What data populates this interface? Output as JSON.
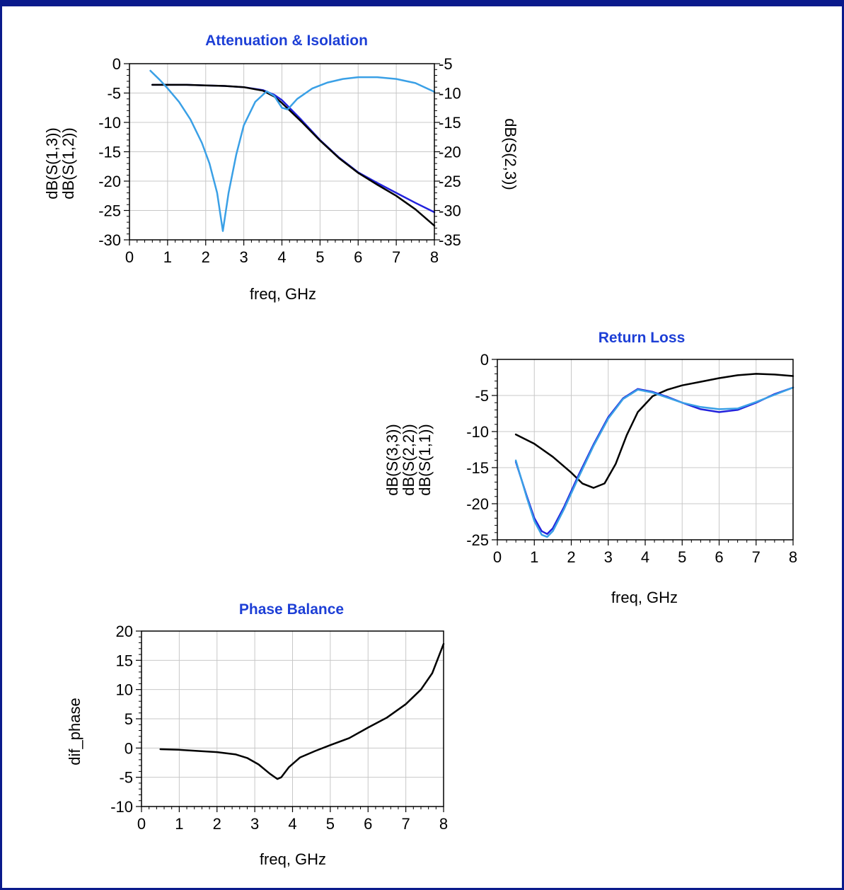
{
  "chart_data": [
    {
      "type": "line",
      "title": "Attenuation & Isolation",
      "xlabel": "freq, GHz",
      "xlim": [
        0,
        8
      ],
      "xticks": [
        0,
        1,
        2,
        3,
        4,
        5,
        6,
        7,
        8
      ],
      "ylim": [
        -30,
        0
      ],
      "yticks": [
        0,
        -5,
        -10,
        -15,
        -20,
        -25,
        -30
      ],
      "y2lim": [
        -35,
        -5
      ],
      "y2ticks": [
        -5,
        -10,
        -15,
        -20,
        -25,
        -30,
        -35
      ],
      "grid": true,
      "ylabels_left": [
        "dB(S(1,3))",
        "dB(S(1,2))"
      ],
      "ylabels_right": [
        "dB(S(2,3))"
      ],
      "series": [
        {
          "name": "dB(S(1,3))",
          "axis": "left",
          "color": "#2222dd",
          "x": [
            0.6,
            1,
            1.5,
            2,
            2.5,
            3,
            3.5,
            3.8,
            4,
            4.5,
            5,
            5.5,
            6,
            6.5,
            7,
            7.5,
            8
          ],
          "y": [
            -3.6,
            -3.6,
            -3.6,
            -3.7,
            -3.8,
            -4.0,
            -4.5,
            -5.3,
            -6.2,
            -9.5,
            -13,
            -16,
            -18.5,
            -20.3,
            -22,
            -23.7,
            -25.3
          ]
        },
        {
          "name": "dB(S(1,2))",
          "axis": "left",
          "color": "#000000",
          "x": [
            0.6,
            1,
            1.5,
            2,
            2.5,
            3,
            3.5,
            3.8,
            4,
            4.5,
            5,
            5.5,
            6,
            6.5,
            7,
            7.5,
            8
          ],
          "y": [
            -3.6,
            -3.6,
            -3.6,
            -3.7,
            -3.8,
            -4.0,
            -4.6,
            -5.6,
            -6.7,
            -9.8,
            -13.1,
            -16.1,
            -18.6,
            -20.6,
            -22.5,
            -24.8,
            -27.6
          ]
        },
        {
          "name": "dB(S(2,3))",
          "axis": "right",
          "color": "#3aa0e6",
          "x": [
            0.55,
            0.8,
            1,
            1.3,
            1.6,
            1.9,
            2.1,
            2.3,
            2.45,
            2.6,
            2.8,
            3.0,
            3.3,
            3.6,
            3.8,
            4.0,
            4.15,
            4.4,
            4.8,
            5.2,
            5.6,
            6.0,
            6.5,
            7.0,
            7.5,
            8.0
          ],
          "y": [
            -6.2,
            -7.8,
            -9.2,
            -11.5,
            -14.5,
            -18.5,
            -22,
            -27,
            -33.5,
            -27,
            -20.5,
            -15.5,
            -11.5,
            -9.7,
            -10.5,
            -12.5,
            -12.8,
            -11,
            -9.2,
            -8.2,
            -7.6,
            -7.3,
            -7.3,
            -7.6,
            -8.3,
            -9.8
          ]
        }
      ]
    },
    {
      "type": "line",
      "title": "Return Loss",
      "xlabel": "freq, GHz",
      "xlim": [
        0,
        8
      ],
      "xticks": [
        0,
        1,
        2,
        3,
        4,
        5,
        6,
        7,
        8
      ],
      "ylim": [
        -25,
        0
      ],
      "yticks": [
        0,
        -5,
        -10,
        -15,
        -20,
        -25
      ],
      "grid": true,
      "ylabels_left": [
        "dB(S(3,3))",
        "dB(S(2,2))",
        "dB(S(1,1))"
      ],
      "series": [
        {
          "name": "dB(S(1,1))",
          "color": "#000000",
          "x": [
            0.5,
            1,
            1.5,
            2,
            2.3,
            2.6,
            2.9,
            3.2,
            3.5,
            3.8,
            4.2,
            4.6,
            5,
            5.5,
            6,
            6.5,
            7,
            7.5,
            8
          ],
          "y": [
            -10.4,
            -11.7,
            -13.5,
            -15.7,
            -17.2,
            -17.8,
            -17.2,
            -14.5,
            -10.5,
            -7.3,
            -5.1,
            -4.2,
            -3.6,
            -3.1,
            -2.6,
            -2.2,
            -2.0,
            -2.1,
            -2.3
          ]
        },
        {
          "name": "dB(S(2,2))",
          "color": "#2222dd",
          "x": [
            0.5,
            0.8,
            1.0,
            1.2,
            1.35,
            1.5,
            1.8,
            2.2,
            2.6,
            3.0,
            3.4,
            3.8,
            4.2,
            4.6,
            5,
            5.5,
            6,
            6.5,
            7,
            7.5,
            8
          ],
          "y": [
            -14.2,
            -19,
            -22,
            -23.8,
            -24.2,
            -23.4,
            -20.5,
            -16,
            -11.8,
            -8,
            -5.4,
            -4.1,
            -4.5,
            -5.2,
            -6,
            -6.9,
            -7.3,
            -7,
            -6,
            -4.8,
            -3.9
          ]
        },
        {
          "name": "dB(S(3,3))",
          "color": "#3aa0e6",
          "x": [
            0.5,
            0.8,
            1.0,
            1.2,
            1.35,
            1.5,
            1.8,
            2.2,
            2.6,
            3.0,
            3.4,
            3.8,
            4.2,
            4.6,
            5,
            5.5,
            6,
            6.5,
            7,
            7.5,
            8
          ],
          "y": [
            -14,
            -19.2,
            -22.4,
            -24.3,
            -24.6,
            -23.8,
            -20.8,
            -16.3,
            -12,
            -8.2,
            -5.5,
            -4.2,
            -4.6,
            -5.3,
            -6,
            -6.6,
            -6.9,
            -6.8,
            -5.9,
            -4.9,
            -3.9
          ]
        }
      ]
    },
    {
      "type": "line",
      "title": "Phase Balance",
      "xlabel": "freq, GHz",
      "ylabel": "dif_phase",
      "xlim": [
        0,
        8
      ],
      "xticks": [
        0,
        1,
        2,
        3,
        4,
        5,
        6,
        7,
        8
      ],
      "ylim": [
        -10,
        20
      ],
      "yticks": [
        20,
        15,
        10,
        5,
        0,
        -5,
        -10
      ],
      "grid": true,
      "series": [
        {
          "name": "dif_phase",
          "color": "#000000",
          "x": [
            0.5,
            1,
            1.5,
            2,
            2.5,
            2.8,
            3.1,
            3.4,
            3.6,
            3.7,
            3.9,
            4.2,
            4.6,
            5,
            5.5,
            6,
            6.5,
            7,
            7.4,
            7.7,
            8
          ],
          "y": [
            -0.2,
            -0.3,
            -0.5,
            -0.7,
            -1.1,
            -1.7,
            -2.8,
            -4.4,
            -5.3,
            -5.0,
            -3.3,
            -1.6,
            -0.5,
            0.5,
            1.7,
            3.5,
            5.2,
            7.5,
            10,
            12.8,
            17.8
          ]
        }
      ]
    }
  ],
  "ui": {
    "frame_color": "#0a1a8c",
    "grid_color": "#c8c8c8",
    "title_color": "#1d3fd6"
  }
}
